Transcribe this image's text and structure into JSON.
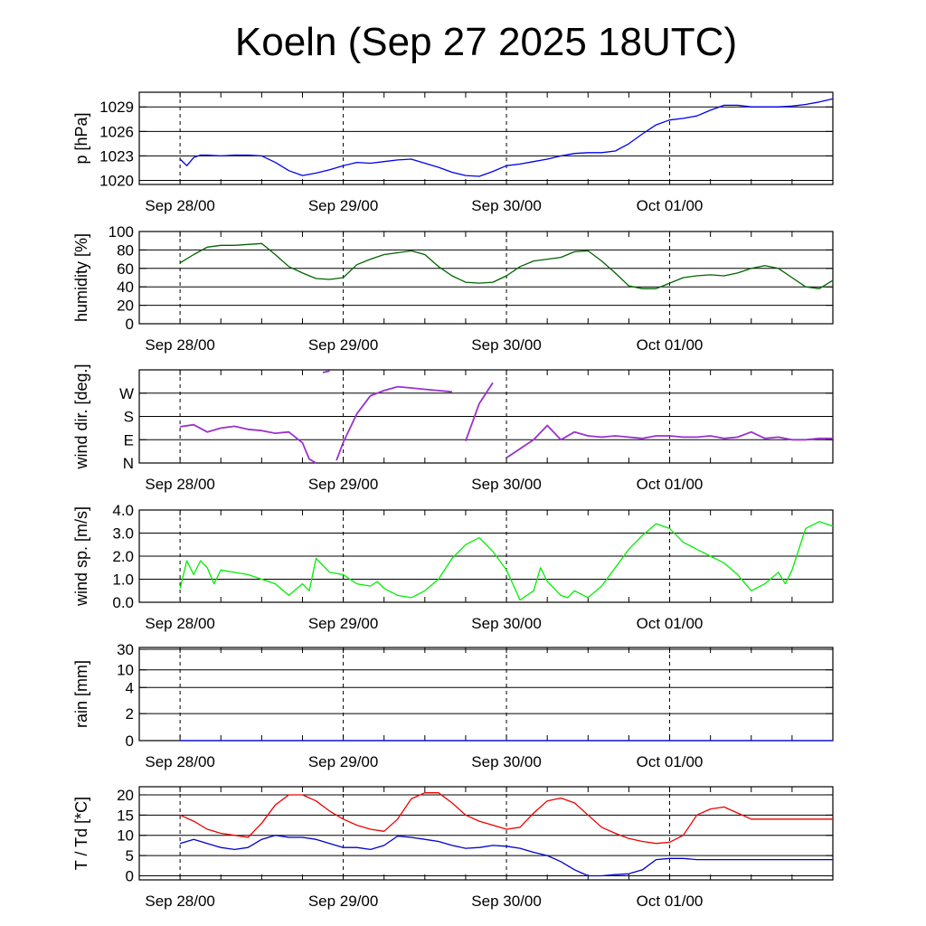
{
  "title": "Koeln (Sep 27 2025 18UTC)",
  "colors": {
    "pressure": "#0000ee",
    "humidity": "#006400",
    "wind_dir": "#9a32cd",
    "wind_speed": "#00ee00",
    "temperature": "#ee0000",
    "dewpoint": "#0000cd"
  },
  "chart_data": [
    {
      "type": "line",
      "ylabel": "p [hPa]",
      "xticks": [
        "Sep 28/00",
        "Sep 29/00",
        "Sep 30/00",
        "Oct 01/00"
      ],
      "ylim": [
        1019.5,
        1030.8
      ],
      "yticks": [
        "1020",
        "1023",
        "1026",
        "1029"
      ],
      "series": [
        {
          "x": [
            0,
            1,
            2,
            3,
            4,
            6,
            8,
            10,
            12,
            14,
            16,
            18,
            20,
            22,
            24,
            26,
            28,
            30,
            32,
            34,
            36,
            38,
            40,
            42,
            44,
            46,
            48,
            50,
            52,
            54,
            56,
            58,
            60,
            62,
            64,
            66,
            68,
            70,
            72,
            74,
            76,
            78,
            80,
            82,
            84,
            86,
            88,
            90,
            92,
            94,
            96
          ],
          "y": [
            1022.6,
            1021.8,
            1022.8,
            1023.1,
            1023.1,
            1023.0,
            1023.1,
            1023.1,
            1023.0,
            1022.2,
            1021.2,
            1020.6,
            1020.9,
            1021.3,
            1021.8,
            1022.2,
            1022.1,
            1022.3,
            1022.5,
            1022.6,
            1022.1,
            1021.6,
            1021.0,
            1020.6,
            1020.5,
            1021.1,
            1021.8,
            1022.0,
            1022.3,
            1022.6,
            1023.0,
            1023.3,
            1023.4,
            1023.4,
            1023.6,
            1024.5,
            1025.7,
            1026.8,
            1027.4,
            1027.6,
            1027.9,
            1028.6,
            1029.2,
            1029.2,
            1029.0,
            1029.0,
            1029.0,
            1029.1,
            1029.3,
            1029.6,
            1030.0
          ]
        }
      ]
    },
    {
      "type": "line",
      "ylabel": "humidity [%]",
      "xticks": [
        "Sep 28/00",
        "Sep 29/00",
        "Sep 30/00",
        "Oct 01/00"
      ],
      "ylim": [
        0,
        100
      ],
      "yticks": [
        "0",
        "20",
        "40",
        "60",
        "80",
        "100"
      ],
      "series": [
        {
          "x": [
            0,
            2,
            4,
            6,
            8,
            10,
            12,
            14,
            16,
            18,
            20,
            22,
            24,
            26,
            28,
            30,
            32,
            34,
            36,
            38,
            40,
            42,
            44,
            46,
            48,
            50,
            52,
            54,
            56,
            58,
            60,
            62,
            64,
            66,
            68,
            70,
            72,
            74,
            76,
            78,
            80,
            82,
            84,
            86,
            88,
            90,
            92,
            94,
            96
          ],
          "y": [
            66,
            75,
            83,
            85,
            85,
            86,
            87,
            75,
            62,
            55,
            49,
            48,
            50,
            64,
            70,
            75,
            77,
            79,
            75,
            62,
            52,
            45,
            44,
            45,
            52,
            62,
            68,
            70,
            72,
            78,
            79,
            68,
            55,
            41,
            38,
            38,
            44,
            50,
            52,
            53,
            52,
            55,
            60,
            63,
            60,
            50,
            40,
            38,
            47
          ]
        }
      ]
    },
    {
      "type": "scatter",
      "ylabel": "wind dir. [deg.]",
      "xticks": [
        "Sep 28/00",
        "Sep 29/00",
        "Sep 30/00",
        "Oct 01/00"
      ],
      "ylim": [
        0,
        360
      ],
      "yticks": [
        "N",
        "E",
        "S",
        "W"
      ],
      "series": [
        {
          "x": [
            0,
            2,
            4,
            6,
            8,
            10,
            12,
            14,
            16,
            18,
            19,
            20,
            21,
            22,
            23,
            24,
            26,
            28,
            30,
            32,
            34,
            36,
            38,
            40,
            42,
            44,
            46,
            48,
            52,
            54,
            56,
            58,
            60,
            62,
            64,
            66,
            68,
            70,
            72,
            74,
            76,
            78,
            80,
            82,
            84,
            86,
            88,
            90,
            92,
            94,
            96
          ],
          "y": [
            140,
            148,
            120,
            135,
            142,
            130,
            125,
            115,
            120,
            78,
            15,
            0,
            350,
            355,
            10,
            80,
            190,
            260,
            280,
            295,
            290,
            285,
            280,
            275,
            85,
            230,
            310,
            20,
            90,
            145,
            90,
            120,
            105,
            100,
            105,
            100,
            95,
            105,
            105,
            100,
            100,
            105,
            95,
            100,
            120,
            95,
            100,
            90,
            90,
            95,
            95
          ]
        }
      ]
    },
    {
      "type": "line",
      "ylabel": "wind sp. [m/s]",
      "xticks": [
        "Sep 28/00",
        "Sep 29/00",
        "Sep 30/00",
        "Oct 01/00"
      ],
      "ylim": [
        0,
        4
      ],
      "yticks": [
        "0.0",
        "1.0",
        "2.0",
        "3.0",
        "4.0"
      ],
      "series": [
        {
          "x": [
            0,
            1,
            2,
            3,
            4,
            5,
            6,
            8,
            10,
            12,
            14,
            16,
            18,
            19,
            20,
            22,
            24,
            26,
            28,
            29,
            30,
            32,
            34,
            36,
            38,
            40,
            42,
            44,
            46,
            48,
            50,
            52,
            53,
            54,
            55,
            56,
            57,
            58,
            60,
            62,
            64,
            66,
            68,
            70,
            72,
            74,
            76,
            78,
            80,
            82,
            84,
            86,
            88,
            89,
            90,
            92,
            94,
            96
          ],
          "y": [
            0.6,
            1.8,
            1.2,
            1.8,
            1.5,
            0.8,
            1.4,
            1.3,
            1.2,
            1.0,
            0.8,
            0.3,
            0.8,
            0.5,
            1.9,
            1.3,
            1.2,
            0.8,
            0.7,
            0.9,
            0.6,
            0.3,
            0.2,
            0.5,
            1.0,
            1.9,
            2.5,
            2.8,
            2.2,
            1.4,
            0.1,
            0.5,
            1.5,
            0.9,
            0.6,
            0.3,
            0.2,
            0.5,
            0.2,
            0.7,
            1.5,
            2.3,
            2.9,
            3.4,
            3.2,
            2.6,
            2.3,
            2.0,
            1.7,
            1.2,
            0.5,
            0.8,
            1.3,
            0.8,
            1.4,
            3.2,
            3.5,
            3.3
          ]
        }
      ]
    },
    {
      "type": "line",
      "ylabel": "rain [mm]",
      "xticks": [
        "Sep 28/00",
        "Sep 29/00",
        "Sep 30/00",
        "Oct 01/00"
      ],
      "ylim": [
        0,
        30
      ],
      "yticks": [
        "0",
        "2",
        "4",
        "10",
        "30"
      ],
      "series": [
        {
          "x": [
            0,
            96
          ],
          "y": [
            0,
            0
          ]
        }
      ]
    },
    {
      "type": "line",
      "ylabel": "T / Td [*C]",
      "xticks": [
        "Sep 28/00",
        "Sep 29/00",
        "Sep 30/00",
        "Oct 01/00"
      ],
      "ylim": [
        -1,
        22
      ],
      "yticks": [
        "0",
        "5",
        "10",
        "15",
        "20"
      ],
      "series": [
        {
          "x": [
            0,
            2,
            4,
            6,
            8,
            10,
            12,
            14,
            16,
            18,
            20,
            22,
            24,
            26,
            28,
            30,
            32,
            34,
            36,
            38,
            40,
            42,
            44,
            46,
            48,
            50,
            52,
            54,
            56,
            58,
            60,
            62,
            64,
            66,
            68,
            70,
            72,
            74,
            76,
            78,
            80,
            82,
            84,
            86,
            88,
            90,
            92,
            94,
            96
          ],
          "y": [
            15,
            13.5,
            11.5,
            10.5,
            10,
            9.5,
            13,
            17.5,
            20,
            20,
            18.5,
            16,
            14,
            12.5,
            11.5,
            11,
            14,
            19,
            20.5,
            20.5,
            18,
            15,
            13.5,
            12.5,
            11.5,
            12,
            15.5,
            18.5,
            19.2,
            18,
            15,
            12,
            10.5,
            9.2,
            8.5,
            8,
            8.3,
            10,
            15,
            16.5,
            17,
            15.5,
            14,
            14,
            14,
            14,
            14,
            14,
            14
          ]
        },
        {
          "x": [
            0,
            2,
            4,
            6,
            8,
            10,
            12,
            14,
            16,
            18,
            20,
            22,
            24,
            26,
            28,
            30,
            32,
            34,
            36,
            38,
            40,
            42,
            44,
            46,
            48,
            50,
            52,
            54,
            56,
            58,
            60,
            62,
            64,
            66,
            68,
            70,
            72,
            74,
            76,
            78,
            80,
            82,
            84,
            86,
            88,
            90,
            92,
            94,
            96
          ],
          "y": [
            8,
            9,
            8,
            7,
            6.5,
            7,
            9,
            10,
            9.5,
            9.5,
            9,
            8,
            7,
            7,
            6.5,
            7.5,
            9.8,
            9.5,
            9,
            8.5,
            7.5,
            6.8,
            7,
            7.5,
            7.3,
            6.8,
            5.8,
            5,
            3.5,
            1.5,
            0,
            0,
            0.3,
            0.5,
            1.5,
            4,
            4.3,
            4.3,
            4,
            4,
            4,
            4,
            4,
            4,
            4,
            4,
            4,
            4,
            4
          ]
        }
      ]
    }
  ]
}
